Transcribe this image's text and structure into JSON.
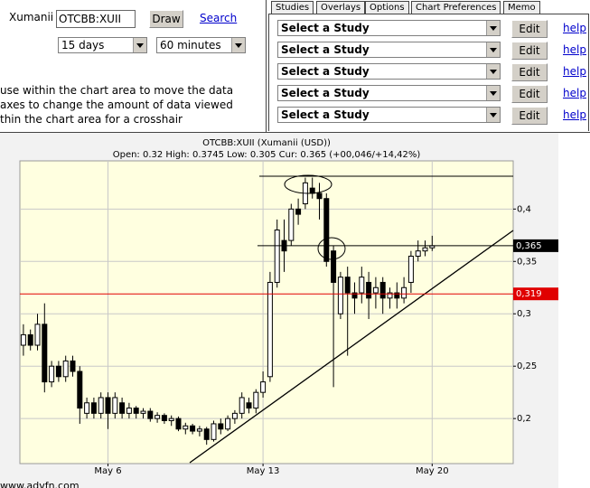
{
  "toolbar": {
    "name_label": "Xumanii",
    "symbol": "OTCBB:XUII",
    "draw": "Draw",
    "search": "Search",
    "period": "15 days",
    "interval": "60 minutes"
  },
  "instructions": [
    "use within the chart area to move the data",
    "axes to change the amount of data viewed",
    "thin the chart area for a crosshair"
  ],
  "tabs": [
    "Studies",
    "Overlays",
    "Options",
    "Chart Preferences",
    "Memo"
  ],
  "studies": [
    {
      "select": "Select a Study",
      "edit": "Edit",
      "help": "help"
    },
    {
      "select": "Select a Study",
      "edit": "Edit",
      "help": "help"
    },
    {
      "select": "Select a Study",
      "edit": "Edit",
      "help": "help"
    },
    {
      "select": "Select a Study",
      "edit": "Edit",
      "help": "help"
    },
    {
      "select": "Select a Study",
      "edit": "Edit",
      "help": "help"
    }
  ],
  "chart_data": {
    "type": "candlestick",
    "title": "OTCBB:XUII (Xumanii (USD))",
    "subtitle": "Open: 0.32 High: 0.3745 Low: 0.305 Cur: 0.365 (+00,046/+14,42%)",
    "categories": [
      null,
      null,
      null,
      null,
      null,
      null,
      null,
      null,
      null,
      null,
      null,
      null,
      "May 6",
      null,
      null,
      null,
      null,
      null,
      null,
      null,
      null,
      null,
      null,
      null,
      null,
      null,
      null,
      null,
      null,
      null,
      null,
      null,
      null,
      null,
      "May 13",
      null,
      null,
      null,
      null,
      null,
      null,
      null,
      null,
      null,
      null,
      null,
      null,
      null,
      null,
      null,
      null,
      null,
      null,
      null,
      null,
      null,
      null,
      null,
      "May 20"
    ],
    "open": [
      0.27,
      0.28,
      0.27,
      0.29,
      0.235,
      0.25,
      0.24,
      0.255,
      0.245,
      0.205,
      0.215,
      0.205,
      0.22,
      0.205,
      0.215,
      0.205,
      0.21,
      0.205,
      0.207,
      0.2,
      0.203,
      0.198,
      0.2,
      0.19,
      0.193,
      0.188,
      0.19,
      0.18,
      0.195,
      0.19,
      0.2,
      0.205,
      0.215,
      0.21,
      0.225,
      0.24,
      0.33,
      0.37,
      0.37,
      0.4,
      0.405,
      0.42,
      0.415,
      0.41,
      0.36,
      0.3,
      0.335,
      0.32,
      0.32,
      0.33,
      0.32,
      0.33,
      0.315,
      0.32,
      0.315,
      0.33,
      0.355,
      0.36,
      0.363
    ],
    "high": [
      0.29,
      0.285,
      0.3,
      0.31,
      0.255,
      0.255,
      0.26,
      0.26,
      0.25,
      0.22,
      0.22,
      0.225,
      0.225,
      0.225,
      0.22,
      0.215,
      0.212,
      0.21,
      0.21,
      0.206,
      0.205,
      0.203,
      0.202,
      0.196,
      0.195,
      0.193,
      0.192,
      0.198,
      0.2,
      0.203,
      0.208,
      0.225,
      0.22,
      0.228,
      0.245,
      0.34,
      0.39,
      0.39,
      0.405,
      0.41,
      0.43,
      0.43,
      0.425,
      0.415,
      0.365,
      0.34,
      0.345,
      0.33,
      0.345,
      0.34,
      0.335,
      0.335,
      0.325,
      0.33,
      0.335,
      0.36,
      0.37,
      0.37,
      0.3745
    ],
    "low": [
      0.26,
      0.265,
      0.265,
      0.225,
      0.23,
      0.235,
      0.235,
      0.24,
      0.195,
      0.2,
      0.2,
      0.2,
      0.19,
      0.2,
      0.2,
      0.2,
      0.2,
      0.2,
      0.197,
      0.196,
      0.195,
      0.193,
      0.188,
      0.185,
      0.185,
      0.183,
      0.175,
      0.178,
      0.185,
      0.188,
      0.195,
      0.2,
      0.205,
      0.205,
      0.22,
      0.235,
      0.325,
      0.34,
      0.365,
      0.385,
      0.4,
      0.41,
      0.39,
      0.345,
      0.23,
      0.295,
      0.26,
      0.3,
      0.31,
      0.295,
      0.305,
      0.3,
      0.305,
      0.305,
      0.31,
      0.32,
      0.35,
      0.355,
      0.36
    ],
    "close": [
      0.28,
      0.27,
      0.29,
      0.235,
      0.25,
      0.24,
      0.255,
      0.245,
      0.21,
      0.215,
      0.205,
      0.22,
      0.205,
      0.22,
      0.205,
      0.21,
      0.205,
      0.207,
      0.2,
      0.203,
      0.198,
      0.2,
      0.19,
      0.193,
      0.188,
      0.19,
      0.18,
      0.195,
      0.19,
      0.2,
      0.205,
      0.22,
      0.21,
      0.225,
      0.235,
      0.33,
      0.38,
      0.36,
      0.4,
      0.395,
      0.425,
      0.415,
      0.41,
      0.35,
      0.33,
      0.335,
      0.32,
      0.315,
      0.335,
      0.315,
      0.325,
      0.315,
      0.32,
      0.315,
      0.325,
      0.355,
      0.36,
      0.363,
      0.365
    ],
    "ylim": [
      0.157,
      0.446
    ],
    "yticks": [
      {
        "value": 0.2,
        "label": "0,2"
      },
      {
        "value": 0.25,
        "label": "0,25"
      },
      {
        "value": 0.3,
        "label": "0,3"
      },
      {
        "value": 0.35,
        "label": "0,35"
      },
      {
        "value": 0.4,
        "label": "0,4"
      }
    ],
    "grid": true,
    "price_lines": [
      {
        "value": 0.365,
        "label": "0,365",
        "color": "#000000"
      },
      {
        "value": 0.319,
        "label": "0,319",
        "color": "#e00000"
      }
    ]
  },
  "footer": "www.advfn.com"
}
